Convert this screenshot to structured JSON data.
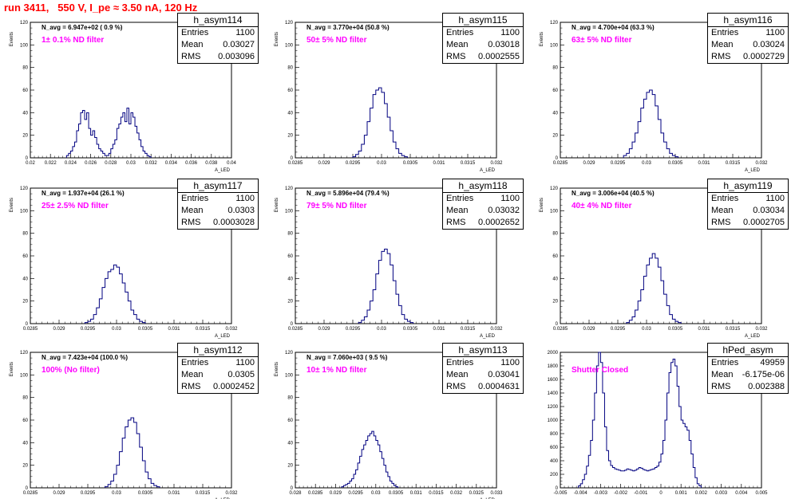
{
  "header": {
    "run_title": "run 3411,   550 V, I_pe ≈ 3.50 nA, 120 Hz"
  },
  "chart_data": [
    {
      "type": "histogram",
      "name": "h_asym114",
      "navg": "N_avg = 6.947e+02 ( 0.9 %)",
      "filter": "1± 0.1% ND filter",
      "stats": [
        [
          "Entries",
          "1100"
        ],
        [
          "Mean",
          "0.03027"
        ],
        [
          "RMS",
          "0.003096"
        ]
      ],
      "ylabel": "Events",
      "xlabel": "A_LED",
      "xlim": [
        0.02,
        0.04
      ],
      "ylim": [
        0,
        120
      ],
      "xticks": [
        0.02,
        0.022,
        0.024,
        0.026,
        0.028,
        0.03,
        0.032,
        0.034,
        0.036,
        0.038,
        0.04
      ],
      "xticklabels": [
        "0.02",
        "0.022",
        "0.024",
        "0.026",
        "0.028",
        "0.03",
        "0.032",
        "0.034",
        "0.036",
        "0.038",
        "0.04"
      ],
      "yticks": [
        0,
        20,
        40,
        60,
        80,
        100,
        120
      ],
      "bins": {
        "start": 0.0236,
        "width": 0.0002,
        "values": [
          2,
          4,
          6,
          10,
          14,
          24,
          30,
          40,
          42,
          34,
          40,
          26,
          20,
          24,
          18,
          12,
          8,
          6,
          4,
          2,
          2,
          4,
          8,
          12,
          16,
          26,
          30,
          36,
          40,
          32,
          44,
          30,
          40,
          36,
          28,
          22,
          16,
          10,
          6,
          4,
          2,
          1
        ]
      }
    },
    {
      "type": "histogram",
      "name": "h_asym115",
      "navg": "N_avg = 3.770e+04 (50.8 %)",
      "filter": "50± 5% ND filter",
      "stats": [
        [
          "Entries",
          "1100"
        ],
        [
          "Mean",
          "0.03018"
        ],
        [
          "RMS",
          "0.0002555"
        ]
      ],
      "ylabel": "Events",
      "xlabel": "A_LED",
      "xlim": [
        0.0285,
        0.032
      ],
      "ylim": [
        0,
        120
      ],
      "xticks": [
        0.0285,
        0.029,
        0.0295,
        0.03,
        0.0305,
        0.031,
        0.0315,
        0.032
      ],
      "xticklabels": [
        "0.0285",
        "0.029",
        "0.0295",
        "0.03",
        "0.0305",
        "0.031",
        "0.0315",
        "0.032"
      ],
      "yticks": [
        0,
        20,
        40,
        60,
        80,
        100,
        120
      ],
      "bins": {
        "start": 0.0295,
        "width": 5e-05,
        "values": [
          1,
          3,
          6,
          12,
          20,
          32,
          44,
          56,
          60,
          62,
          58,
          48,
          36,
          24,
          14,
          8,
          4,
          2,
          1
        ]
      }
    },
    {
      "type": "histogram",
      "name": "h_asym116",
      "navg": "N_avg = 4.700e+04 (63.3 %)",
      "filter": "63± 5% ND filter",
      "stats": [
        [
          "Entries",
          "1100"
        ],
        [
          "Mean",
          "0.03024"
        ],
        [
          "RMS",
          "0.0002729"
        ]
      ],
      "ylabel": "Events",
      "xlabel": "A_LED",
      "xlim": [
        0.0285,
        0.032
      ],
      "ylim": [
        0,
        120
      ],
      "xticks": [
        0.0285,
        0.029,
        0.0295,
        0.03,
        0.0305,
        0.031,
        0.0315,
        0.032
      ],
      "xticklabels": [
        "0.0285",
        "0.029",
        "0.0295",
        "0.03",
        "0.0305",
        "0.031",
        "0.0315",
        "0.032"
      ],
      "yticks": [
        0,
        20,
        40,
        60,
        80,
        100,
        120
      ],
      "bins": {
        "start": 0.0296,
        "width": 5e-05,
        "values": [
          2,
          4,
          8,
          14,
          22,
          32,
          44,
          52,
          58,
          60,
          56,
          46,
          34,
          22,
          14,
          8,
          4,
          2,
          1
        ]
      }
    },
    {
      "type": "histogram",
      "name": "h_asym117",
      "navg": "N_avg = 1.937e+04 (26.1 %)",
      "filter": "25± 2.5% ND filter",
      "stats": [
        [
          "Entries",
          "1100"
        ],
        [
          "Mean",
          "0.0303"
        ],
        [
          "RMS",
          "0.0003028"
        ]
      ],
      "ylabel": "Events",
      "xlabel": "A_LED",
      "xlim": [
        0.0285,
        0.032
      ],
      "ylim": [
        0,
        120
      ],
      "xticks": [
        0.0285,
        0.029,
        0.0295,
        0.03,
        0.0305,
        0.031,
        0.0315,
        0.032
      ],
      "xticklabels": [
        "0.0285",
        "0.029",
        "0.0295",
        "0.03",
        "0.0305",
        "0.031",
        "0.0315",
        "0.032"
      ],
      "yticks": [
        0,
        20,
        40,
        60,
        80,
        100,
        120
      ],
      "bins": {
        "start": 0.02945,
        "width": 5e-05,
        "values": [
          1,
          2,
          4,
          8,
          14,
          22,
          32,
          40,
          46,
          48,
          52,
          50,
          44,
          36,
          28,
          20,
          12,
          8,
          4,
          2,
          1
        ]
      }
    },
    {
      "type": "histogram",
      "name": "h_asym118",
      "navg": "N_avg = 5.896e+04 (79.4 %)",
      "filter": "79± 5% ND filter",
      "stats": [
        [
          "Entries",
          "1100"
        ],
        [
          "Mean",
          "0.03032"
        ],
        [
          "RMS",
          "0.0002652"
        ]
      ],
      "ylabel": "Events",
      "xlabel": "A_LED",
      "xlim": [
        0.0285,
        0.032
      ],
      "ylim": [
        0,
        120
      ],
      "xticks": [
        0.0285,
        0.029,
        0.0295,
        0.03,
        0.0305,
        0.031,
        0.0315,
        0.032
      ],
      "xticklabels": [
        "0.0285",
        "0.029",
        "0.0295",
        "0.03",
        "0.0305",
        "0.031",
        "0.0315",
        "0.032"
      ],
      "yticks": [
        0,
        20,
        40,
        60,
        80,
        100,
        120
      ],
      "bins": {
        "start": 0.0296,
        "width": 5e-05,
        "values": [
          1,
          3,
          6,
          12,
          20,
          30,
          44,
          56,
          64,
          66,
          62,
          52,
          38,
          26,
          16,
          8,
          4,
          2,
          1
        ]
      }
    },
    {
      "type": "histogram",
      "name": "h_asym119",
      "navg": "N_avg = 3.006e+04 (40.5 %)",
      "filter": "40± 4% ND filter",
      "stats": [
        [
          "Entries",
          "1100"
        ],
        [
          "Mean",
          "0.03034"
        ],
        [
          "RMS",
          "0.0002705"
        ]
      ],
      "ylabel": "Events",
      "xlabel": "A_LED",
      "xlim": [
        0.0285,
        0.032
      ],
      "ylim": [
        0,
        120
      ],
      "xticks": [
        0.0285,
        0.029,
        0.0295,
        0.03,
        0.0305,
        0.031,
        0.0315,
        0.032
      ],
      "xticklabels": [
        "0.0285",
        "0.029",
        "0.0295",
        "0.03",
        "0.0305",
        "0.031",
        "0.0315",
        "0.032"
      ],
      "yticks": [
        0,
        20,
        40,
        60,
        80,
        100,
        120
      ],
      "bins": {
        "start": 0.02965,
        "width": 5e-05,
        "values": [
          1,
          3,
          6,
          12,
          20,
          30,
          42,
          52,
          58,
          62,
          58,
          50,
          38,
          26,
          16,
          8,
          4,
          2,
          1
        ]
      }
    },
    {
      "type": "histogram",
      "name": "h_asym112",
      "navg": "N_avg = 7.423e+04 (100.0 %)",
      "filter": "100% (No filter)",
      "stats": [
        [
          "Entries",
          "1100"
        ],
        [
          "Mean",
          "0.0305"
        ],
        [
          "RMS",
          "0.0002452"
        ]
      ],
      "ylabel": "Events",
      "xlabel": "A_LED",
      "xlim": [
        0.0285,
        0.032
      ],
      "ylim": [
        0,
        120
      ],
      "xticks": [
        0.0285,
        0.029,
        0.0295,
        0.03,
        0.0305,
        0.031,
        0.0315,
        0.032
      ],
      "xticklabels": [
        "0.0285",
        "0.029",
        "0.0295",
        "0.03",
        "0.0305",
        "0.031",
        "0.0315",
        "0.032"
      ],
      "yticks": [
        0,
        20,
        40,
        60,
        80,
        100,
        120
      ],
      "bins": {
        "start": 0.0298,
        "width": 5e-05,
        "values": [
          1,
          3,
          6,
          12,
          20,
          32,
          44,
          54,
          60,
          62,
          58,
          48,
          36,
          24,
          14,
          8,
          4,
          2,
          1
        ]
      }
    },
    {
      "type": "histogram",
      "name": "h_asym113",
      "navg": "N_avg = 7.060e+03 ( 9.5 %)",
      "filter": "10± 1% ND filter",
      "stats": [
        [
          "Entries",
          "1100"
        ],
        [
          "Mean",
          "0.03041"
        ],
        [
          "RMS",
          "0.0004631"
        ]
      ],
      "ylabel": "Events",
      "xlabel": "A_LED",
      "xlim": [
        0.028,
        0.033
      ],
      "ylim": [
        0,
        120
      ],
      "xticks": [
        0.028,
        0.0285,
        0.029,
        0.0295,
        0.03,
        0.0305,
        0.031,
        0.0315,
        0.032,
        0.0325,
        0.033
      ],
      "xticklabels": [
        "0.028",
        "0.0285",
        "0.029",
        "0.0295",
        "0.03",
        "0.0305",
        "0.031",
        "0.0315",
        "0.032",
        "0.0325",
        "0.033"
      ],
      "yticks": [
        0,
        20,
        40,
        60,
        80,
        100,
        120
      ],
      "bins": {
        "start": 0.02915,
        "width": 5e-05,
        "values": [
          1,
          2,
          3,
          4,
          6,
          8,
          12,
          16,
          22,
          28,
          34,
          38,
          42,
          46,
          48,
          50,
          46,
          42,
          38,
          32,
          26,
          20,
          14,
          10,
          6,
          4,
          2,
          1
        ]
      }
    },
    {
      "type": "histogram",
      "name": "hPed_asym",
      "navg": "",
      "filter": "Shutter Closed",
      "stats": [
        [
          "Entries",
          "49959"
        ],
        [
          "Mean",
          "-6.175e-06"
        ],
        [
          "RMS",
          "0.002388"
        ]
      ],
      "ylabel": "",
      "xlabel": "",
      "xlim": [
        -0.005,
        0.005
      ],
      "ylim": [
        0,
        2000
      ],
      "xticks": [
        -0.005,
        -0.004,
        -0.003,
        -0.002,
        -0.001,
        0,
        0.001,
        0.002,
        0.003,
        0.004,
        0.005
      ],
      "xticklabels": [
        "-0.005",
        "-0.004",
        "-0.003",
        "-0.002",
        "-0.001",
        "0",
        "0.001",
        "0.002",
        "0.003",
        "0.004",
        "0.005"
      ],
      "yticks": [
        0,
        200,
        400,
        600,
        800,
        1000,
        1200,
        1400,
        1600,
        1800,
        2000
      ],
      "bins": {
        "start": -0.0041,
        "width": 0.0001,
        "values": [
          30,
          60,
          120,
          200,
          320,
          480,
          700,
          1000,
          1400,
          1800,
          2000,
          1850,
          1400,
          900,
          550,
          400,
          330,
          300,
          280,
          270,
          260,
          250,
          250,
          260,
          280,
          270,
          260,
          250,
          260,
          280,
          300,
          290,
          270,
          260,
          250,
          260,
          270,
          280,
          300,
          320,
          380,
          500,
          700,
          1000,
          1400,
          1700,
          1850,
          1900,
          1800,
          1500,
          1200,
          1000,
          950,
          900,
          850,
          700,
          500,
          300,
          150,
          60,
          30
        ]
      }
    }
  ]
}
